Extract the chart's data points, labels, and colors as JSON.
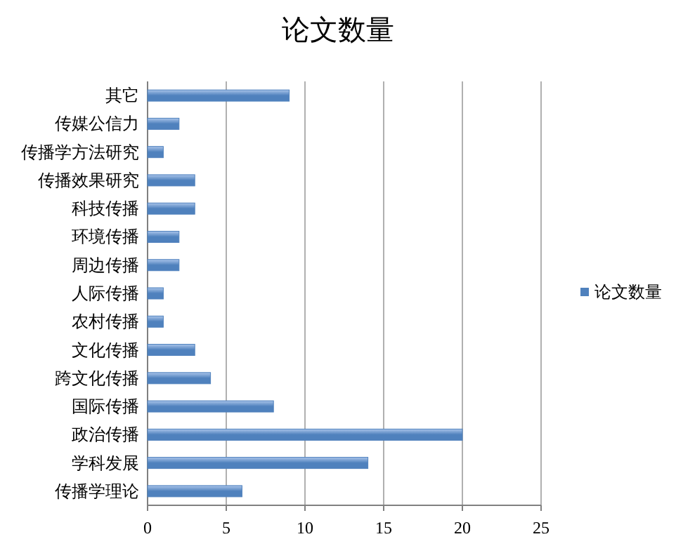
{
  "chart_data": {
    "type": "bar",
    "orientation": "horizontal",
    "title": "论文数量",
    "categories": [
      "其它",
      "传媒公信力",
      "传播学方法研究",
      "传播效果研究",
      "科技传播",
      "环境传播",
      "周边传播",
      "人际传播",
      "农村传播",
      "文化传播",
      "跨文化传播",
      "国际传播",
      "政治传播",
      "学科发展",
      "传播学理论"
    ],
    "series": [
      {
        "name": "论文数量",
        "color": "#4f81bd",
        "values": [
          9,
          2,
          1,
          3,
          3,
          2,
          2,
          1,
          1,
          3,
          4,
          8,
          20,
          14,
          6
        ]
      }
    ],
    "xlim": [
      0,
      25
    ],
    "xticks": [
      0,
      5,
      10,
      15,
      20,
      25
    ],
    "grid": "x",
    "legend": "right"
  }
}
